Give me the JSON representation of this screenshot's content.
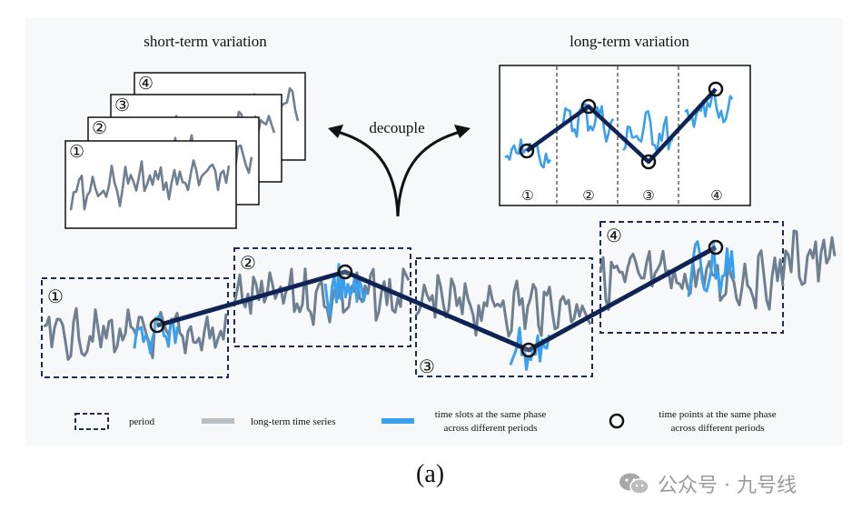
{
  "figure": {
    "short_term_title": "short-term variation",
    "long_term_title": "long-term variation",
    "decouple_label": "decouple",
    "period_markers": [
      "①",
      "②",
      "③",
      "④"
    ],
    "legend": {
      "period": "period",
      "long_series": "long-term time series",
      "slots_line1": "time slots at the same phase",
      "slots_line2": "across different periods",
      "points_line1": "time points at the same phase",
      "points_line2": "across different periods"
    },
    "caption": "(a)",
    "watermark": "公众号 · 九号线"
  },
  "colors": {
    "series": "#6f7f92",
    "highlight": "#3aa0ee",
    "navy": "#0f2454",
    "box": "#1b2d52"
  }
}
